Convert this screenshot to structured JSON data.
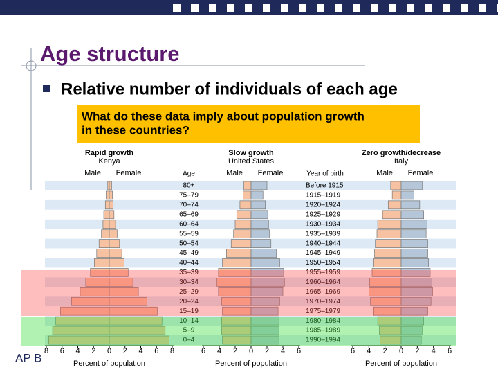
{
  "slide": {
    "title": "Age structure",
    "bullet": "Relative number of individuals of each age",
    "question_lines": [
      "What do these data imply about population growth",
      "in these countries?"
    ],
    "footer": "AP B"
  },
  "chart_data": [
    {
      "type": "pyramid",
      "title": "Rapid growth",
      "subtitle": "Kenya",
      "age_label": "Age",
      "categories": [
        "80+",
        "75–79",
        "70–74",
        "65–69",
        "60–64",
        "55–59",
        "50–54",
        "45–49",
        "40–44",
        "35–39",
        "30–34",
        "25–29",
        "20–24",
        "15–19",
        "10–14",
        "5–9",
        "0–4"
      ],
      "series": [
        {
          "name": "Male",
          "color": "#f6c2a2",
          "values": [
            0.2,
            0.4,
            0.5,
            0.7,
            0.8,
            1.0,
            1.3,
            1.6,
            1.9,
            2.4,
            3.0,
            3.7,
            4.8,
            6.2,
            6.8,
            7.2,
            7.7
          ]
        },
        {
          "name": "Female",
          "color": "#f6c2a2",
          "values": [
            0.3,
            0.4,
            0.5,
            0.6,
            0.8,
            1.0,
            1.3,
            1.6,
            1.9,
            2.4,
            3.0,
            3.7,
            4.8,
            6.1,
            6.7,
            7.1,
            7.6
          ]
        }
      ],
      "xlim": [
        -8,
        8
      ],
      "xticks": [
        {
          "value": -8,
          "label": "8"
        },
        {
          "value": -6,
          "label": "6"
        },
        {
          "value": -4,
          "label": "4"
        },
        {
          "value": -2,
          "label": "2"
        },
        0,
        2,
        4,
        6,
        8
      ],
      "x_label": "Percent of population"
    },
    {
      "type": "pyramid",
      "title": "Slow growth",
      "subtitle": "United States",
      "year_label": "Year of birth",
      "years": [
        "Before 1915",
        "1915–1919",
        "1920–1924",
        "1925–1929",
        "1930–1934",
        "1935–1939",
        "1940–1944",
        "1945–1949",
        "1950–1954",
        "1955–1959",
        "1960–1964",
        "1965–1969",
        "1970–1974",
        "1975–1979",
        "1980–1984",
        "1985–1989",
        "1990–1994"
      ],
      "series": [
        {
          "name": "Male",
          "color": "#f6c2a2",
          "values": [
            0.9,
            1.0,
            1.4,
            1.8,
            2.0,
            2.2,
            2.5,
            3.1,
            3.6,
            4.1,
            4.3,
            4.1,
            3.7,
            3.6,
            3.7,
            3.7,
            3.6
          ]
        },
        {
          "name": "Female",
          "color": "#b4c6d8",
          "values": [
            2.0,
            1.5,
            1.8,
            2.1,
            2.2,
            2.3,
            2.5,
            3.2,
            3.6,
            4.1,
            4.2,
            4.0,
            3.6,
            3.4,
            3.5,
            3.5,
            3.5
          ]
        }
      ],
      "xlim": [
        -6,
        6
      ],
      "xticks": [
        {
          "value": -6,
          "label": "6"
        },
        {
          "value": -4,
          "label": "4"
        },
        {
          "value": -2,
          "label": "2"
        },
        0,
        2,
        4,
        6
      ],
      "x_label": "Percent of population"
    },
    {
      "type": "pyramid",
      "title": "Zero growth/decrease",
      "subtitle": "Italy",
      "series": [
        {
          "name": "Male",
          "color": "#f6c2a2",
          "values": [
            1.3,
            1.1,
            1.6,
            2.3,
            2.9,
            3.0,
            3.2,
            3.3,
            3.4,
            3.6,
            3.9,
            4.0,
            3.8,
            3.4,
            2.9,
            2.7,
            2.6
          ]
        },
        {
          "name": "Female",
          "color": "#b4c6d8",
          "values": [
            2.6,
            1.6,
            2.3,
            2.8,
            3.2,
            3.1,
            3.3,
            3.3,
            3.4,
            3.6,
            3.8,
            3.9,
            3.7,
            3.3,
            2.8,
            2.6,
            2.5
          ]
        }
      ],
      "xlim": [
        -6,
        6
      ],
      "xticks": [
        {
          "value": -6,
          "label": "6"
        },
        {
          "value": -4,
          "label": "4"
        },
        {
          "value": -2,
          "label": "2"
        },
        0,
        2,
        4,
        6
      ],
      "x_label": "Percent of population"
    }
  ]
}
